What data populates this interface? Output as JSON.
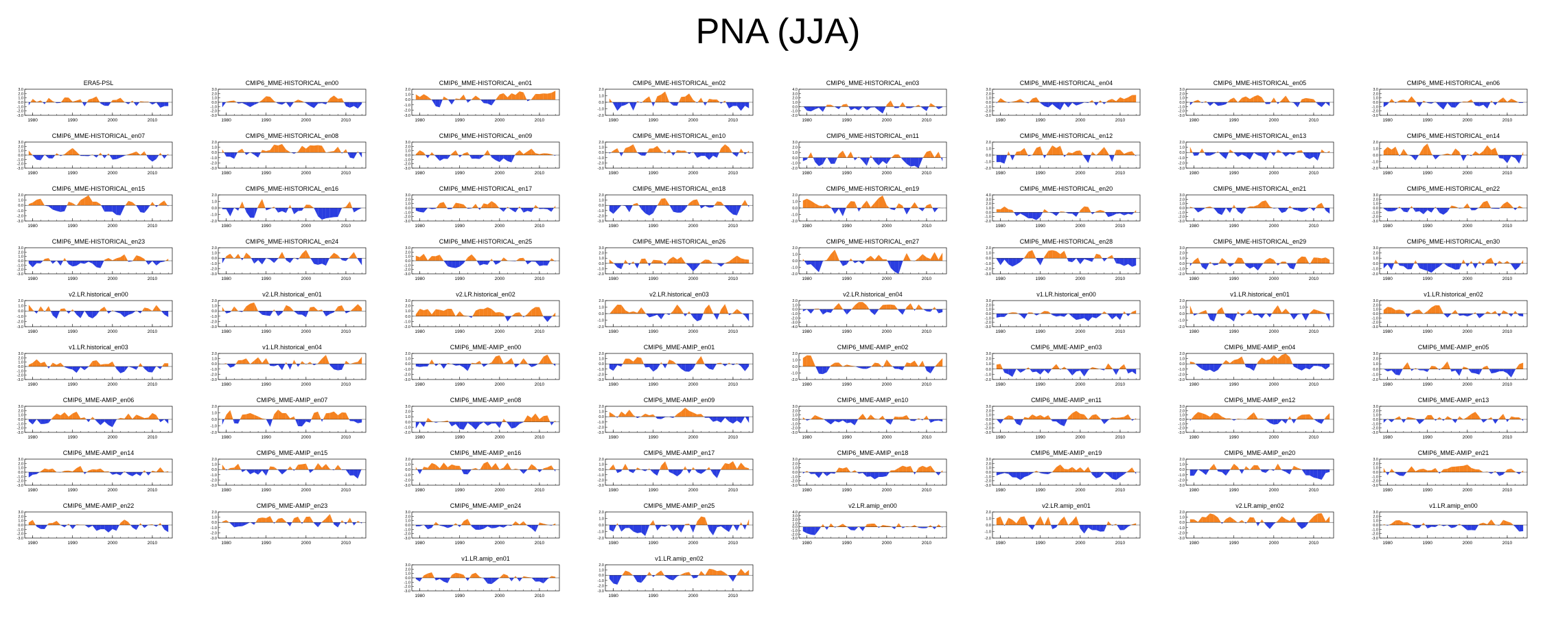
{
  "figure": {
    "title": "PNA (JJA)",
    "positive_color": "#f5821f",
    "negative_color": "#2a3de0",
    "axis_color": "#000000",
    "x_ticks": [
      1980,
      1990,
      2000,
      2010
    ],
    "x_range": [
      1978,
      2015
    ]
  },
  "chart_data": [
    {
      "type": "area",
      "title": "ERA5-PSL",
      "yticks": [
        "3.0",
        "2.0",
        "1.0",
        "0.0",
        "-1.0",
        "-2.0",
        "-3.0"
      ]
    },
    {
      "type": "area",
      "title": "CMIP6_MME-HISTORICAL_en00",
      "yticks": [
        "3.0",
        "2.0",
        "1.0",
        "0.0",
        "-1.0",
        "-2.0",
        "-3.0"
      ]
    },
    {
      "type": "area",
      "title": "CMIP6_MME-HISTORICAL_en01",
      "yticks": [
        "2.0",
        "1.0",
        "0.0",
        "-1.0",
        "-2.0",
        "-3.0"
      ]
    },
    {
      "type": "area",
      "title": "CMIP6_MME-HISTORICAL_en02",
      "yticks": [
        "2.0",
        "1.0",
        "0.0",
        "-1.0",
        "-2.0"
      ]
    },
    {
      "type": "area",
      "title": "CMIP6_MME-HISTORICAL_en03",
      "yticks": [
        "4.0",
        "3.0",
        "2.0",
        "1.0",
        "0.0",
        "-1.0",
        "-2.0"
      ]
    },
    {
      "type": "area",
      "title": "CMIP6_MME-HISTORICAL_en04",
      "yticks": [
        "3.0",
        "2.0",
        "1.0",
        "0.0",
        "-1.0",
        "-2.0",
        "-3.0"
      ]
    },
    {
      "type": "area",
      "title": "CMIP6_MME-HISTORICAL_en05",
      "yticks": [
        "3.0",
        "2.0",
        "1.0",
        "0.0",
        "-1.0",
        "-2.0",
        "-3.0"
      ]
    },
    {
      "type": "area",
      "title": "CMIP6_MME-HISTORICAL_en06",
      "yticks": [
        "3.0",
        "2.0",
        "1.0",
        "0.0",
        "-1.0",
        "-2.0",
        "-3.0"
      ]
    },
    {
      "type": "area",
      "title": "CMIP6_MME-HISTORICAL_en07",
      "yticks": [
        "3.0",
        "2.0",
        "1.0",
        "0.0",
        "-1.0",
        "-2.0",
        "-3.0"
      ]
    },
    {
      "type": "area",
      "title": "CMIP6_MME-HISTORICAL_en08",
      "yticks": [
        "2.0",
        "1.0",
        "0.0",
        "-1.0",
        "-2.0",
        "-3.0"
      ]
    },
    {
      "type": "area",
      "title": "CMIP6_MME-HISTORICAL_en09",
      "yticks": [
        "3.0",
        "2.0",
        "1.0",
        "0.0",
        "-1.0",
        "-2.0",
        "-3.0"
      ]
    },
    {
      "type": "area",
      "title": "CMIP6_MME-HISTORICAL_en10",
      "yticks": [
        "2.0",
        "1.0",
        "0.0",
        "-1.0",
        "-2.0",
        "-3.0"
      ]
    },
    {
      "type": "area",
      "title": "CMIP6_MME-HISTORICAL_en11",
      "yticks": [
        "3.0",
        "2.0",
        "1.0",
        "0.0",
        "-1.0",
        "-2.0"
      ]
    },
    {
      "type": "area",
      "title": "CMIP6_MME-HISTORICAL_en12",
      "yticks": [
        "2.0",
        "1.0",
        "0.0",
        "-1.0",
        "-2.0"
      ]
    },
    {
      "type": "area",
      "title": "CMIP6_MME-HISTORICAL_en13",
      "yticks": [
        "2.0",
        "1.0",
        "0.0",
        "-1.0",
        "-2.0",
        "-3.0"
      ]
    },
    {
      "type": "area",
      "title": "CMIP6_MME-HISTORICAL_en14",
      "yticks": [
        "2.0",
        "1.0",
        "0.0",
        "-1.0",
        "-2.0"
      ]
    },
    {
      "type": "area",
      "title": "CMIP6_MME-HISTORICAL_en15",
      "yticks": [
        "2.0",
        "1.0",
        "0.0",
        "-1.0",
        "-2.0",
        "-3.0"
      ]
    },
    {
      "type": "area",
      "title": "CMIP6_MME-HISTORICAL_en16",
      "yticks": [
        "2.0",
        "1.0",
        "0.0",
        "-1.0",
        "-2.0"
      ]
    },
    {
      "type": "area",
      "title": "CMIP6_MME-HISTORICAL_en17",
      "yticks": [
        "3.0",
        "2.0",
        "1.0",
        "0.0",
        "-1.0",
        "-2.0",
        "-3.0"
      ]
    },
    {
      "type": "area",
      "title": "CMIP6_MME-HISTORICAL_en18",
      "yticks": [
        "2.0",
        "1.0",
        "0.0",
        "-1.0",
        "-2.0",
        "-3.0"
      ]
    },
    {
      "type": "area",
      "title": "CMIP6_MME-HISTORICAL_en19",
      "yticks": [
        "2.0",
        "1.0",
        "0.0",
        "-1.0",
        "-2.0"
      ]
    },
    {
      "type": "area",
      "title": "CMIP6_MME-HISTORICAL_en20",
      "yticks": [
        "4.0",
        "3.0",
        "2.0",
        "1.0",
        "0.0",
        "-1.0",
        "-2.0"
      ]
    },
    {
      "type": "area",
      "title": "CMIP6_MME-HISTORICAL_en21",
      "yticks": [
        "3.0",
        "2.0",
        "1.0",
        "0.0",
        "-1.0",
        "-2.0",
        "-3.0"
      ]
    },
    {
      "type": "area",
      "title": "CMIP6_MME-HISTORICAL_en22",
      "yticks": [
        "3.0",
        "2.0",
        "1.0",
        "0.0",
        "-1.0",
        "-2.0",
        "-3.0"
      ]
    },
    {
      "type": "area",
      "title": "CMIP6_MME-HISTORICAL_en23",
      "yticks": [
        "3.0",
        "2.0",
        "1.0",
        "0.0",
        "-1.0",
        "-2.0",
        "-3.0"
      ]
    },
    {
      "type": "area",
      "title": "CMIP6_MME-HISTORICAL_en24",
      "yticks": [
        "2.0",
        "1.0",
        "0.0",
        "-1.0",
        "-2.0",
        "-3.0"
      ]
    },
    {
      "type": "area",
      "title": "CMIP6_MME-HISTORICAL_en25",
      "yticks": [
        "3.0",
        "2.0",
        "1.0",
        "0.0",
        "-1.0",
        "-2.0",
        "-3.0"
      ]
    },
    {
      "type": "area",
      "title": "CMIP6_MME-HISTORICAL_en26",
      "yticks": [
        "3.0",
        "2.0",
        "1.0",
        "0.0",
        "-1.0",
        "-2.0"
      ]
    },
    {
      "type": "area",
      "title": "CMIP6_MME-HISTORICAL_en27",
      "yticks": [
        "2.0",
        "1.0",
        "0.0",
        "-1.0",
        "-2.0"
      ]
    },
    {
      "type": "area",
      "title": "CMIP6_MME-HISTORICAL_en28",
      "yticks": [
        "2.0",
        "1.0",
        "0.0",
        "-1.0",
        "-2.0",
        "-3.0"
      ]
    },
    {
      "type": "area",
      "title": "CMIP6_MME-HISTORICAL_en29",
      "yticks": [
        "3.0",
        "2.0",
        "1.0",
        "0.0",
        "-1.0",
        "-2.0"
      ]
    },
    {
      "type": "area",
      "title": "CMIP6_MME-HISTORICAL_en30",
      "yticks": [
        "3.0",
        "2.0",
        "1.0",
        "0.0",
        "-1.0",
        "-2.0"
      ]
    },
    {
      "type": "area",
      "title": "v2.LR.historical_en00",
      "yticks": [
        "2.0",
        "1.0",
        "0.0",
        "-1.0",
        "-2.0",
        "-3.0"
      ]
    },
    {
      "type": "area",
      "title": "v2.LR.historical_en01",
      "yticks": [
        "2.0",
        "1.0",
        "0.0",
        "-1.0",
        "-2.0",
        "-3.0"
      ]
    },
    {
      "type": "area",
      "title": "v2.LR.historical_en02",
      "yticks": [
        "3.0",
        "2.0",
        "1.0",
        "0.0",
        "-1.0",
        "-2.0"
      ]
    },
    {
      "type": "area",
      "title": "v2.LR.historical_en03",
      "yticks": [
        "2.0",
        "1.0",
        "0.0",
        "-1.0",
        "-2.0"
      ]
    },
    {
      "type": "area",
      "title": "v2.LR.historical_en04",
      "yticks": [
        "2.0",
        "1.0",
        "0.0",
        "-1.0",
        "-2.0",
        "-3.0",
        "-4.0"
      ]
    },
    {
      "type": "area",
      "title": "v1.LR.historical_en00",
      "yticks": [
        "3.0",
        "2.0",
        "1.0",
        "0.0",
        "-1.0",
        "-2.0",
        "-3.0"
      ]
    },
    {
      "type": "area",
      "title": "v1.LR.historical_en01",
      "yticks": [
        "2.0",
        "1.0",
        "0.0",
        "-1.0",
        "-2.0"
      ]
    },
    {
      "type": "area",
      "title": "v1.LR.historical_en02",
      "yticks": [
        "3.0",
        "2.0",
        "1.0",
        "0.0",
        "-1.0",
        "-2.0",
        "-3.0"
      ]
    },
    {
      "type": "area",
      "title": "v1.LR.historical_en03",
      "yticks": [
        "3.0",
        "2.0",
        "1.0",
        "0.0",
        "-1.0",
        "-2.0",
        "-3.0"
      ]
    },
    {
      "type": "area",
      "title": "v1.LR.historical_en04",
      "yticks": [
        "2.0",
        "1.0",
        "0.0",
        "-1.0",
        "-2.0",
        "-3.0"
      ]
    },
    {
      "type": "area",
      "title": "CMIP6_MME-AMIP_en00",
      "yticks": [
        "2.0",
        "1.0",
        "0.0",
        "-1.0",
        "-2.0",
        "-3.0"
      ]
    },
    {
      "type": "area",
      "title": "CMIP6_MME-AMIP_en01",
      "yticks": [
        "2.0",
        "1.0",
        "0.0",
        "-1.0",
        "-2.0",
        "-3.0"
      ]
    },
    {
      "type": "area",
      "title": "CMIP6_MME-AMIP_en02",
      "yticks": [
        "2.0",
        "1.0",
        "0.0",
        "-1.0",
        "-2.0"
      ]
    },
    {
      "type": "area",
      "title": "CMIP6_MME-AMIP_en03",
      "yticks": [
        "3.0",
        "2.0",
        "1.0",
        "0.0",
        "-1.0",
        "-2.0"
      ]
    },
    {
      "type": "area",
      "title": "CMIP6_MME-AMIP_en04",
      "yticks": [
        "2.0",
        "1.0",
        "0.0",
        "-1.0",
        "-2.0",
        "-3.0"
      ]
    },
    {
      "type": "area",
      "title": "CMIP6_MME-AMIP_en05",
      "yticks": [
        "3.0",
        "2.0",
        "1.0",
        "0.0",
        "-1.0",
        "-2.0"
      ]
    },
    {
      "type": "area",
      "title": "CMIP6_MME-AMIP_en06",
      "yticks": [
        "3.0",
        "2.0",
        "1.0",
        "0.0",
        "-1.0",
        "-2.0",
        "-3.0"
      ]
    },
    {
      "type": "area",
      "title": "CMIP6_MME-AMIP_en07",
      "yticks": [
        "2.0",
        "1.0",
        "0.0",
        "-1.0",
        "-2.0"
      ]
    },
    {
      "type": "area",
      "title": "CMIP6_MME-AMIP_en08",
      "yticks": [
        "3.0",
        "2.0",
        "1.0",
        "0.0",
        "-1.0",
        "-2.0"
      ]
    },
    {
      "type": "area",
      "title": "CMIP6_MME-AMIP_en09",
      "yticks": [
        "2.0",
        "1.0",
        "0.0",
        "-1.0",
        "-2.0",
        "-3.0"
      ]
    },
    {
      "type": "area",
      "title": "CMIP6_MME-AMIP_en10",
      "yticks": [
        "3.0",
        "2.0",
        "1.0",
        "0.0",
        "-1.0",
        "-2.0",
        "-3.0"
      ]
    },
    {
      "type": "area",
      "title": "CMIP6_MME-AMIP_en11",
      "yticks": [
        "3.0",
        "2.0",
        "1.0",
        "0.0",
        "-1.0",
        "-2.0",
        "-3.0"
      ]
    },
    {
      "type": "area",
      "title": "CMIP6_MME-AMIP_en12",
      "yticks": [
        "3.0",
        "2.0",
        "1.0",
        "0.0",
        "-1.0",
        "-2.0",
        "-3.0"
      ]
    },
    {
      "type": "area",
      "title": "CMIP6_MME-AMIP_en13",
      "yticks": [
        "3.0",
        "2.0",
        "1.0",
        "0.0",
        "-1.0",
        "-2.0",
        "-3.0"
      ]
    },
    {
      "type": "area",
      "title": "CMIP6_MME-AMIP_en14",
      "yticks": [
        "3.0",
        "2.0",
        "1.0",
        "0.0",
        "-1.0",
        "-2.0",
        "-3.0"
      ]
    },
    {
      "type": "area",
      "title": "CMIP6_MME-AMIP_en15",
      "yticks": [
        "2.0",
        "1.0",
        "0.0",
        "-1.0",
        "-2.0",
        "-3.0"
      ]
    },
    {
      "type": "area",
      "title": "CMIP6_MME-AMIP_en16",
      "yticks": [
        "2.0",
        "1.0",
        "0.0",
        "-1.0",
        "-2.0",
        "-3.0"
      ]
    },
    {
      "type": "area",
      "title": "CMIP6_MME-AMIP_en17",
      "yticks": [
        "2.0",
        "1.0",
        "0.0",
        "-1.0",
        "-2.0",
        "-3.0"
      ]
    },
    {
      "type": "area",
      "title": "CMIP6_MME-AMIP_en18",
      "yticks": [
        "3.0",
        "2.0",
        "1.0",
        "0.0",
        "-1.0",
        "-2.0",
        "-3.0"
      ]
    },
    {
      "type": "area",
      "title": "CMIP6_MME-AMIP_en19",
      "yticks": [
        "3.0",
        "2.0",
        "1.0",
        "0.0",
        "-1.0",
        "-2.0",
        "-3.0"
      ]
    },
    {
      "type": "area",
      "title": "CMIP6_MME-AMIP_en20",
      "yticks": [
        "2.0",
        "1.0",
        "0.0",
        "-1.0",
        "-2.0",
        "-3.0"
      ]
    },
    {
      "type": "area",
      "title": "CMIP6_MME-AMIP_en21",
      "yticks": [
        "3.0",
        "2.0",
        "1.0",
        "0.0",
        "-1.0",
        "-2.0",
        "-3.0"
      ]
    },
    {
      "type": "area",
      "title": "CMIP6_MME-AMIP_en22",
      "yticks": [
        "3.0",
        "2.0",
        "1.0",
        "0.0",
        "-1.0",
        "-2.0",
        "-3.0"
      ]
    },
    {
      "type": "area",
      "title": "CMIP6_MME-AMIP_en23",
      "yticks": [
        "2.0",
        "1.0",
        "0.0",
        "-1.0",
        "-2.0",
        "-3.0"
      ]
    },
    {
      "type": "area",
      "title": "CMIP6_MME-AMIP_en24",
      "yticks": [
        "3.0",
        "2.0",
        "1.0",
        "0.0",
        "-1.0",
        "-2.0",
        "-3.0"
      ]
    },
    {
      "type": "area",
      "title": "CMIP6_MME-AMIP_en25",
      "yticks": [
        "2.0",
        "1.0",
        "0.0",
        "-1.0",
        "-2.0"
      ]
    },
    {
      "type": "area",
      "title": "v2.LR.amip_en00",
      "yticks": [
        "4.0",
        "3.0",
        "2.0",
        "1.0",
        "0.0",
        "-1.0",
        "-2.0",
        "-3.0"
      ]
    },
    {
      "type": "area",
      "title": "v2.LR.amip_en01",
      "yticks": [
        "2.0",
        "1.0",
        "0.0",
        "-1.0",
        "-2.0"
      ]
    },
    {
      "type": "area",
      "title": "v2.LR.amip_en02",
      "yticks": [
        "2.0",
        "1.0",
        "0.0",
        "-1.0",
        "-2.0",
        "-3.0"
      ]
    },
    {
      "type": "area",
      "title": "v1.LR.amip_en00",
      "yticks": [
        "3.0",
        "2.0",
        "1.0",
        "0.0",
        "-1.0",
        "-2.0",
        "-3.0"
      ]
    },
    {
      "type": "area",
      "title": "v1.LR.amip_en01",
      "yticks": [
        "3.0",
        "2.0",
        "1.0",
        "0.0",
        "-1.0",
        "-2.0",
        "-3.0"
      ]
    },
    {
      "type": "area",
      "title": "v1.LR.amip_en02",
      "yticks": [
        "2.0",
        "1.0",
        "0.0",
        "-1.0",
        "-2.0",
        "-3.0"
      ]
    }
  ]
}
